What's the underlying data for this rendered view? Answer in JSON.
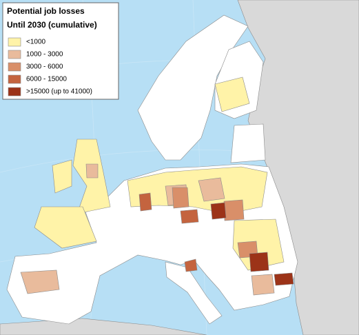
{
  "legend": {
    "title": "Potential job losses",
    "subtitle": "Until 2030 (cumulative)",
    "items": [
      {
        "label": "<1000",
        "color": "#fff3a8"
      },
      {
        "label": "1000 - 3000",
        "color": "#e9bb9c"
      },
      {
        "label": "3000 - 6000",
        "color": "#d98f69"
      },
      {
        "label": "6000 - 15000",
        "color": "#c4643f"
      },
      {
        "label": ">15000 (up to 41000)",
        "color": "#9c3318"
      }
    ]
  }
}
